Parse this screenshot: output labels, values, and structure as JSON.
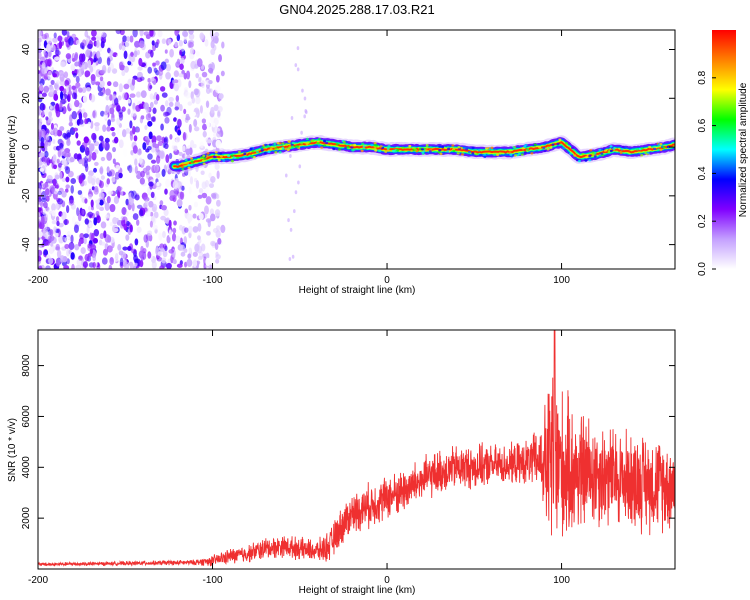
{
  "title": "GN04.2025.288.17.03.R21",
  "chart_data": [
    {
      "type": "heatmap",
      "xlabel": "Height of straight line (km)",
      "ylabel": "Frequency (Hz)",
      "xlim": [
        -200,
        165
      ],
      "ylim": [
        -50,
        48
      ],
      "xticks": [
        -200,
        -100,
        0,
        100
      ],
      "yticks": [
        -40,
        -20,
        0,
        20,
        40
      ],
      "colorbar": {
        "label": "Normalized spectral amplitude",
        "range": [
          0.0,
          1.0
        ],
        "ticks": [
          0.0,
          0.2,
          0.4,
          0.6,
          0.8
        ],
        "tick_labels": [
          "0.0",
          "0.2",
          "0.4",
          "0.6",
          "0.8"
        ],
        "colormap": [
          "#ffffff",
          "#c4a0ff",
          "#8000ff",
          "#0000ff",
          "#00ffff",
          "#00ff00",
          "#ffff00",
          "#ff8000",
          "#ff0000"
        ]
      },
      "noise_region_x": [
        -200,
        -100
      ],
      "ridge": [
        {
          "x": -120,
          "y": -8
        },
        {
          "x": -110,
          "y": -6
        },
        {
          "x": -100,
          "y": -4
        },
        {
          "x": -90,
          "y": -4
        },
        {
          "x": -80,
          "y": -3
        },
        {
          "x": -70,
          "y": -1
        },
        {
          "x": -60,
          "y": 0
        },
        {
          "x": -50,
          "y": 1
        },
        {
          "x": -40,
          "y": 2
        },
        {
          "x": -30,
          "y": 1
        },
        {
          "x": -20,
          "y": 0
        },
        {
          "x": -10,
          "y": 0
        },
        {
          "x": 0,
          "y": -1
        },
        {
          "x": 10,
          "y": -1
        },
        {
          "x": 20,
          "y": -1
        },
        {
          "x": 30,
          "y": -1
        },
        {
          "x": 40,
          "y": -1
        },
        {
          "x": 50,
          "y": -2
        },
        {
          "x": 60,
          "y": -2
        },
        {
          "x": 70,
          "y": -2
        },
        {
          "x": 80,
          "y": -1
        },
        {
          "x": 90,
          "y": 0
        },
        {
          "x": 95,
          "y": 1
        },
        {
          "x": 100,
          "y": 2
        },
        {
          "x": 110,
          "y": -4
        },
        {
          "x": 120,
          "y": -3
        },
        {
          "x": 130,
          "y": -1
        },
        {
          "x": 140,
          "y": -2
        },
        {
          "x": 150,
          "y": -1
        },
        {
          "x": 160,
          "y": 0
        },
        {
          "x": 165,
          "y": 1
        }
      ],
      "grid": false
    },
    {
      "type": "line",
      "xlabel": "Height of straight line (km)",
      "ylabel": "SNR (10 * v/v)",
      "xlim": [
        -200,
        165
      ],
      "ylim": [
        0,
        9400
      ],
      "xticks": [
        -200,
        -100,
        0,
        100
      ],
      "yticks": [
        2000,
        4000,
        6000,
        8000
      ],
      "color": "#ef3030",
      "envelope": [
        {
          "x": -200,
          "mean": 180,
          "spread": 80
        },
        {
          "x": -150,
          "mean": 220,
          "spread": 90
        },
        {
          "x": -110,
          "mean": 260,
          "spread": 120
        },
        {
          "x": -100,
          "mean": 320,
          "spread": 250
        },
        {
          "x": -90,
          "mean": 500,
          "spread": 350
        },
        {
          "x": -80,
          "mean": 600,
          "spread": 400
        },
        {
          "x": -70,
          "mean": 800,
          "spread": 500
        },
        {
          "x": -60,
          "mean": 900,
          "spread": 500
        },
        {
          "x": -50,
          "mean": 800,
          "spread": 500
        },
        {
          "x": -40,
          "mean": 700,
          "spread": 500
        },
        {
          "x": -33,
          "mean": 900,
          "spread": 700
        },
        {
          "x": -25,
          "mean": 1800,
          "spread": 900
        },
        {
          "x": -20,
          "mean": 2200,
          "spread": 900
        },
        {
          "x": -10,
          "mean": 2500,
          "spread": 1000
        },
        {
          "x": 0,
          "mean": 2800,
          "spread": 1000
        },
        {
          "x": 10,
          "mean": 3100,
          "spread": 1000
        },
        {
          "x": 20,
          "mean": 3500,
          "spread": 1000
        },
        {
          "x": 30,
          "mean": 3800,
          "spread": 1000
        },
        {
          "x": 40,
          "mean": 4000,
          "spread": 1000
        },
        {
          "x": 50,
          "mean": 4000,
          "spread": 1000
        },
        {
          "x": 60,
          "mean": 4100,
          "spread": 900
        },
        {
          "x": 70,
          "mean": 4100,
          "spread": 900
        },
        {
          "x": 80,
          "mean": 4200,
          "spread": 1000
        },
        {
          "x": 88,
          "mean": 4300,
          "spread": 1500
        },
        {
          "x": 92,
          "mean": 4000,
          "spread": 3500
        },
        {
          "x": 95,
          "mean": 4500,
          "spread": 5000
        },
        {
          "x": 100,
          "mean": 4000,
          "spread": 3500
        },
        {
          "x": 110,
          "mean": 3800,
          "spread": 2800
        },
        {
          "x": 120,
          "mean": 3800,
          "spread": 2500
        },
        {
          "x": 130,
          "mean": 3600,
          "spread": 2300
        },
        {
          "x": 140,
          "mean": 3500,
          "spread": 2200
        },
        {
          "x": 150,
          "mean": 3400,
          "spread": 2200
        },
        {
          "x": 165,
          "mean": 3300,
          "spread": 2000
        }
      ],
      "peak": {
        "x": 96,
        "y": 9400
      },
      "grid": false
    }
  ]
}
